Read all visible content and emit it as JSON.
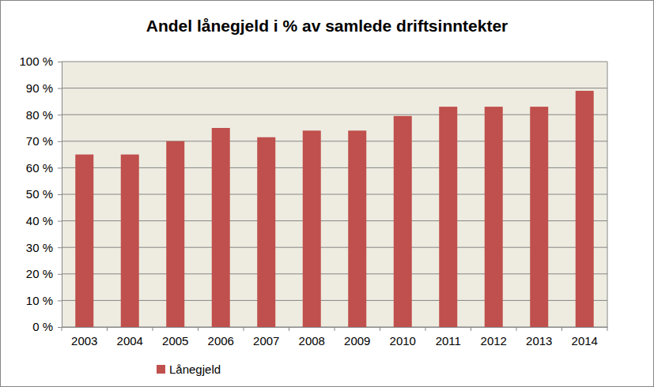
{
  "chart_data": {
    "type": "bar",
    "title": "Andel lånegjeld i % av samlede driftsinntekter",
    "categories": [
      "2003",
      "2004",
      "2005",
      "2006",
      "2007",
      "2008",
      "2009",
      "2010",
      "2011",
      "2012",
      "2013",
      "2014"
    ],
    "series": [
      {
        "name": "Lånegjeld",
        "color": "#c0504d",
        "values": [
          65,
          65,
          70,
          75,
          71.5,
          74,
          74,
          79.5,
          83,
          83,
          83,
          89
        ]
      }
    ],
    "ylim": [
      0,
      100
    ],
    "yticks": [
      {
        "value": 0,
        "label": "0 %"
      },
      {
        "value": 10,
        "label": "10 %"
      },
      {
        "value": 20,
        "label": "20 %"
      },
      {
        "value": 30,
        "label": "30 %"
      },
      {
        "value": 40,
        "label": "40 %"
      },
      {
        "value": 50,
        "label": "50 %"
      },
      {
        "value": 60,
        "label": "60 %"
      },
      {
        "value": 70,
        "label": "70 %"
      },
      {
        "value": 80,
        "label": "80 %"
      },
      {
        "value": 90,
        "label": "90 %"
      },
      {
        "value": 100,
        "label": "100 %"
      }
    ],
    "grid": true,
    "legend": "bottom"
  }
}
